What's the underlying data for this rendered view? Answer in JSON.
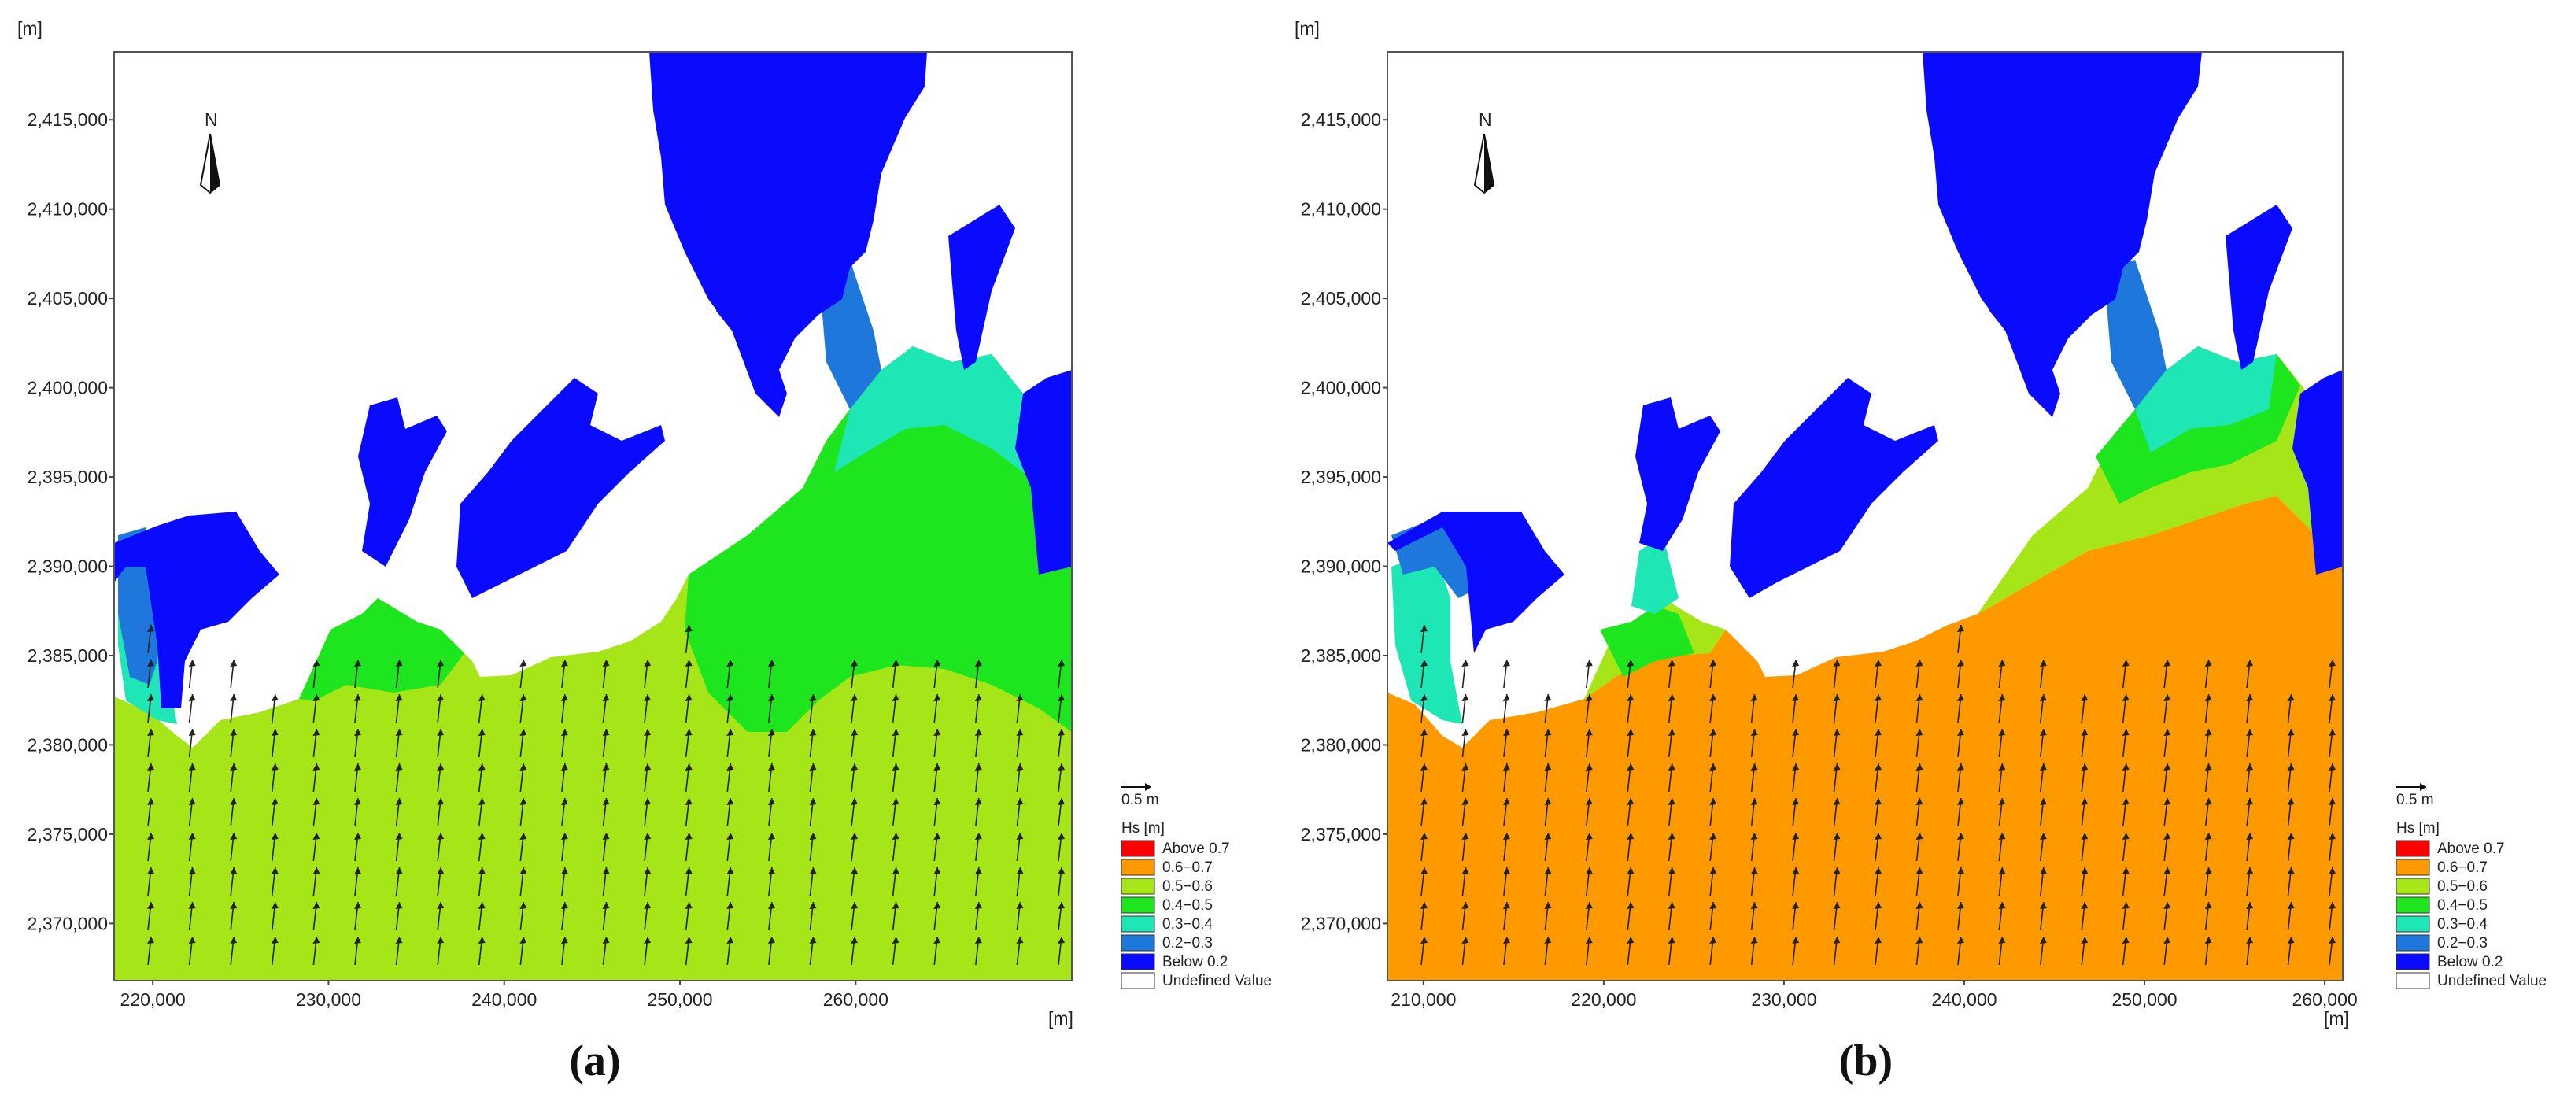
{
  "chart_data": [
    {
      "type": "heatmap",
      "panel_label": "(a)",
      "x_unit": "[m]",
      "y_unit": "[m]",
      "x_ticks": [
        220000,
        230000,
        240000,
        250000,
        260000
      ],
      "x_tick_labels": [
        "220,000",
        "230,000",
        "240,000",
        "250,000",
        "260,000"
      ],
      "xlim": [
        217800,
        272300
      ],
      "y_ticks": [
        2370000,
        2375000,
        2380000,
        2385000,
        2390000,
        2395000,
        2400000,
        2405000,
        2410000,
        2415000
      ],
      "y_tick_labels": [
        "2,370,000",
        "2,375,000",
        "2,380,000",
        "2,385,000",
        "2,390,000",
        "2,395,000",
        "2,400,000",
        "2,405,000",
        "2,410,000",
        "2,415,000"
      ],
      "ylim": [
        2366800,
        2418800
      ],
      "north_label": "N",
      "scale_label": "0.5 m",
      "legend_title": "Hs [m]",
      "legend_placement": "lower-right outside plot",
      "legend": [
        {
          "label": "Above 0.7",
          "color": "#ff0000"
        },
        {
          "label": "0.6−0.7",
          "color": "#ff9900"
        },
        {
          "label": "0.5−0.6",
          "color": "#a6e619"
        },
        {
          "label": "0.4−0.5",
          "color": "#1ee61e"
        },
        {
          "label": "0.3−0.4",
          "color": "#1ee6b4"
        },
        {
          "label": "0.2−0.3",
          "color": "#1e78dc"
        },
        {
          "label": "Below 0.2",
          "color": "#0a0aff"
        },
        {
          "label": "Undefined Value",
          "color": "#ffffff"
        }
      ],
      "dominant_class": "0.5−0.6",
      "arrow_direction": "north"
    },
    {
      "type": "heatmap",
      "panel_label": "(b)",
      "x_unit": "[m]",
      "y_unit": "[m]",
      "x_ticks": [
        210000,
        220000,
        230000,
        240000,
        250000,
        260000
      ],
      "x_tick_labels": [
        "210,000",
        "220,000",
        "230,000",
        "240,000",
        "250,000",
        "260,000"
      ],
      "xlim": [
        208000,
        261000
      ],
      "y_ticks": [
        2370000,
        2375000,
        2380000,
        2385000,
        2390000,
        2395000,
        2400000,
        2405000,
        2410000,
        2415000
      ],
      "y_tick_labels": [
        "2,370,000",
        "2,375,000",
        "2,380,000",
        "2,385,000",
        "2,390,000",
        "2,395,000",
        "2,400,000",
        "2,405,000",
        "2,410,000",
        "2,415,000"
      ],
      "ylim": [
        2366800,
        2418800
      ],
      "north_label": "N",
      "scale_label": "0.5 m",
      "legend_title": "Hs [m]",
      "legend_placement": "lower-right outside plot",
      "legend": [
        {
          "label": "Above 0.7",
          "color": "#ff0000"
        },
        {
          "label": "0.6−0.7",
          "color": "#ff9900"
        },
        {
          "label": "0.5−0.6",
          "color": "#a6e619"
        },
        {
          "label": "0.4−0.5",
          "color": "#1ee61e"
        },
        {
          "label": "0.3−0.4",
          "color": "#1ee6b4"
        },
        {
          "label": "0.2−0.3",
          "color": "#1e78dc"
        },
        {
          "label": "Below 0.2",
          "color": "#0a0aff"
        },
        {
          "label": "Undefined Value",
          "color": "#ffffff"
        }
      ],
      "dominant_class": "0.6−0.7",
      "arrow_direction": "north"
    }
  ]
}
